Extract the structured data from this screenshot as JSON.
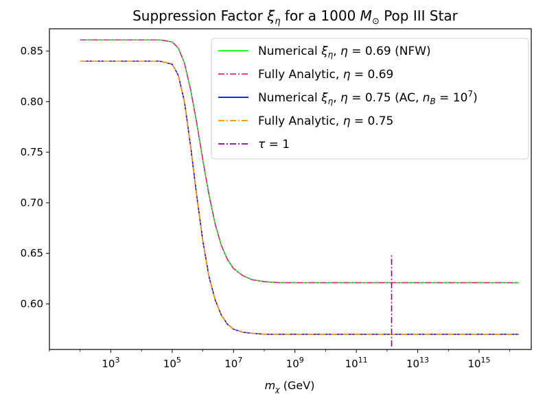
{
  "chart_data": {
    "type": "line",
    "title": "Suppression Factor ξ_η for a 1000 M_⊙ Pop III Star",
    "xlabel": "m_χ (GeV)",
    "ylabel": "",
    "x_scale": "log",
    "xlim_log10": [
      1.0,
      16.7
    ],
    "ylim": [
      0.555,
      0.872
    ],
    "x_ticks": [
      {
        "exp": 3,
        "base": "10",
        "sup": "3"
      },
      {
        "exp": 5,
        "base": "10",
        "sup": "5"
      },
      {
        "exp": 7,
        "base": "10",
        "sup": "7"
      },
      {
        "exp": 9,
        "base": "10",
        "sup": "9"
      },
      {
        "exp": 11,
        "base": "10",
        "sup": "11"
      },
      {
        "exp": 13,
        "base": "10",
        "sup": "13"
      },
      {
        "exp": 15,
        "base": "10",
        "sup": "15"
      }
    ],
    "y_ticks": [
      {
        "value": 0.6,
        "label": "0.60"
      },
      {
        "value": 0.65,
        "label": "0.65"
      },
      {
        "value": 0.7,
        "label": "0.70"
      },
      {
        "value": 0.75,
        "label": "0.75"
      },
      {
        "value": 0.8,
        "label": "0.80"
      },
      {
        "value": 0.85,
        "label": "0.85"
      }
    ],
    "legend_position": "top-right",
    "series": [
      {
        "name": "Numerical ξ_η, η = 0.69 (NFW)",
        "color": "#00ff00",
        "dash": "solid",
        "x_log10": [
          2,
          3,
          4,
          4.6,
          5.0,
          5.2,
          5.4,
          5.6,
          5.8,
          6.0,
          6.2,
          6.4,
          6.6,
          6.8,
          7.0,
          7.3,
          7.6,
          8.0,
          8.5,
          9,
          10,
          12,
          14,
          16.3
        ],
        "y": [
          0.861,
          0.861,
          0.861,
          0.861,
          0.859,
          0.853,
          0.838,
          0.812,
          0.779,
          0.742,
          0.708,
          0.679,
          0.658,
          0.644,
          0.635,
          0.628,
          0.624,
          0.622,
          0.621,
          0.621,
          0.621,
          0.621,
          0.621,
          0.621
        ]
      },
      {
        "name": "Fully Analytic, η = 0.69",
        "color": "#e0218a",
        "dash": "dashdot",
        "x_log10": [
          2,
          3,
          4,
          4.6,
          5.0,
          5.2,
          5.4,
          5.6,
          5.8,
          6.0,
          6.2,
          6.4,
          6.6,
          6.8,
          7.0,
          7.3,
          7.6,
          8.0,
          8.5,
          9,
          10,
          12,
          14,
          16.3
        ],
        "y": [
          0.861,
          0.861,
          0.861,
          0.861,
          0.859,
          0.853,
          0.838,
          0.812,
          0.779,
          0.742,
          0.708,
          0.679,
          0.658,
          0.644,
          0.635,
          0.628,
          0.624,
          0.622,
          0.621,
          0.621,
          0.621,
          0.621,
          0.621,
          0.621
        ]
      },
      {
        "name": "Numerical ξ_η, η = 0.75 (AC, n_B = 10^7)",
        "color": "#0000ff",
        "dash": "solid",
        "x_log10": [
          2,
          3,
          4,
          4.6,
          5.0,
          5.2,
          5.4,
          5.6,
          5.8,
          6.0,
          6.2,
          6.4,
          6.6,
          6.8,
          7.0,
          7.3,
          7.6,
          8.0,
          8.5,
          9,
          10,
          12,
          14,
          16.3
        ],
        "y": [
          0.84,
          0.84,
          0.84,
          0.84,
          0.837,
          0.826,
          0.8,
          0.756,
          0.707,
          0.662,
          0.627,
          0.604,
          0.589,
          0.58,
          0.575,
          0.572,
          0.571,
          0.57,
          0.57,
          0.57,
          0.57,
          0.57,
          0.57,
          0.57
        ]
      },
      {
        "name": "Fully Analytic, η = 0.75",
        "color": "#ff8c00",
        "dash": "dashdot",
        "x_log10": [
          2,
          3,
          4,
          4.6,
          5.0,
          5.2,
          5.4,
          5.6,
          5.8,
          6.0,
          6.2,
          6.4,
          6.6,
          6.8,
          7.0,
          7.3,
          7.6,
          8.0,
          8.5,
          9,
          10,
          12,
          14,
          16.3
        ],
        "y": [
          0.84,
          0.84,
          0.84,
          0.84,
          0.837,
          0.826,
          0.8,
          0.756,
          0.707,
          0.662,
          0.627,
          0.604,
          0.589,
          0.58,
          0.575,
          0.572,
          0.571,
          0.57,
          0.57,
          0.57,
          0.57,
          0.57,
          0.57,
          0.57
        ]
      },
      {
        "name": "τ = 1",
        "color": "#8b008b",
        "dash": "dashdot",
        "x_log10": [
          12.15,
          12.15
        ],
        "y": [
          0.558,
          0.65
        ]
      }
    ]
  }
}
